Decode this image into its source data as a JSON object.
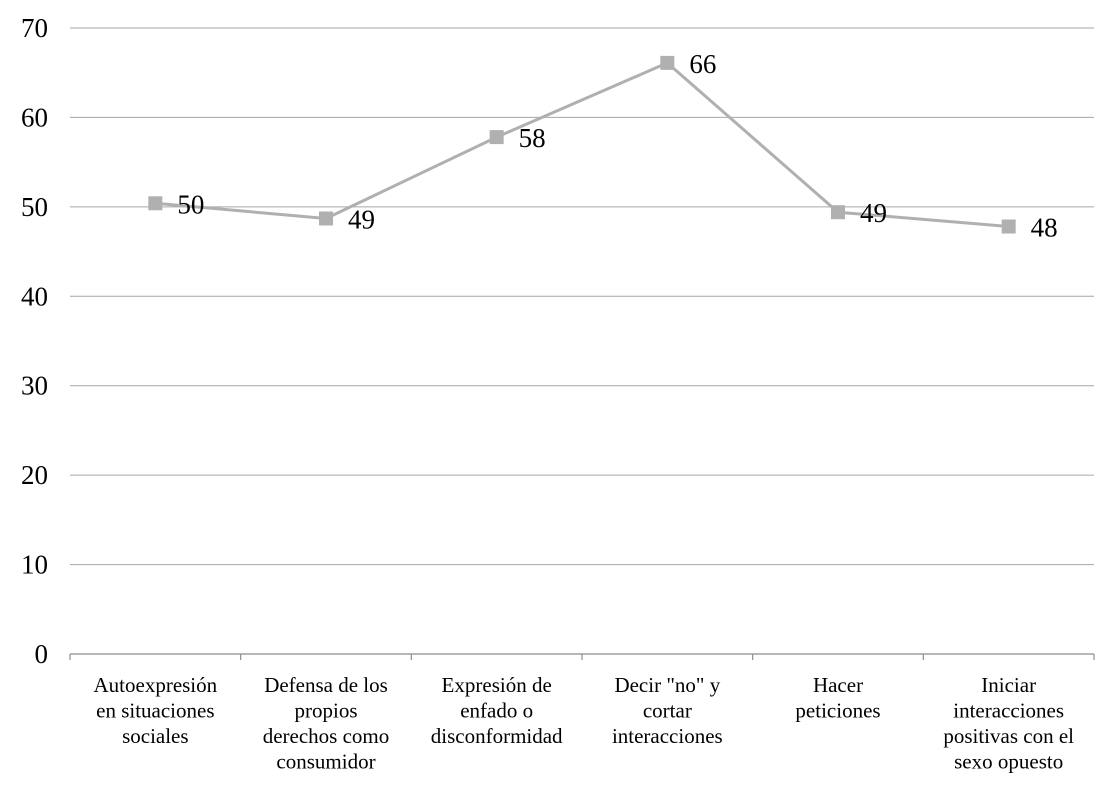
{
  "chart_data": {
    "type": "line",
    "title": "",
    "xlabel": "",
    "ylabel": "",
    "ylim": [
      0,
      70
    ],
    "yticks": [
      0,
      10,
      20,
      30,
      40,
      50,
      60,
      70
    ],
    "grid": true,
    "legend": "none",
    "categories": [
      [
        "Autoexpresión",
        "en situaciones",
        "sociales"
      ],
      [
        "Defensa de los",
        "propios",
        "derechos como",
        "consumidor"
      ],
      [
        "Expresión de",
        "enfado o",
        "disconformidad"
      ],
      [
        "Decir \"no\" y",
        "cortar",
        "interacciones"
      ],
      [
        "Hacer",
        "peticiones"
      ],
      [
        "Iniciar",
        "interacciones",
        "positivas con el",
        "sexo opuesto"
      ]
    ],
    "series": [
      {
        "values": [
          50.4,
          48.7,
          57.8,
          66.1,
          49.4,
          47.8
        ],
        "data_labels": [
          "50",
          "49",
          "58",
          "66",
          "49",
          "48"
        ]
      }
    ],
    "colors": {
      "line": "#b0b0b0",
      "marker": "#b0b0b0",
      "grid": "#a6a6a6",
      "axis": "#8c8c8c"
    }
  }
}
